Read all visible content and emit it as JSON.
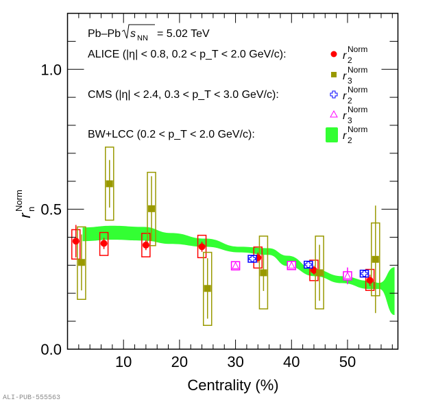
{
  "watermark": "ALI-PUB-555563",
  "chart_data": {
    "type": "scatter",
    "title": "",
    "xlabel": "Centrality (%)",
    "ylabel": "r_n^Norm",
    "ylabel_main": "r",
    "ylabel_sub": "n",
    "ylabel_sup": "Norm",
    "xlim": [
      0,
      59
    ],
    "ylim": [
      0,
      1.2
    ],
    "x_ticks": [
      10,
      20,
      30,
      40,
      50
    ],
    "x_tick_labels": [
      "10",
      "20",
      "30",
      "40",
      "50"
    ],
    "y_ticks": [
      0.0,
      0.5,
      1.0
    ],
    "y_tick_labels": [
      "0.0",
      "0.5",
      "1.0"
    ],
    "grid": false,
    "legend_position": "top",
    "annotations": {
      "system": "Pb–Pb",
      "energy_sym": "s",
      "energy_sub": "NN",
      "energy_value": "= 5.02 TeV",
      "alice_label": "ALICE (|η| < 0.8, 0.2 < p_T < 2.0 GeV/c):",
      "cms_label": "CMS (|η| < 2.4, 0.3 < p_T < 3.0 GeV/c):",
      "bw_label": "BW+LCC (0.2 < p_T < 2.0 GeV/c):"
    },
    "legend": [
      {
        "name": "ALICE r2 Norm",
        "main": "r",
        "sub": "2",
        "sup": "Norm",
        "marker": "circle",
        "color": "#ff0000"
      },
      {
        "name": "ALICE r3 Norm",
        "main": "r",
        "sub": "3",
        "sup": "Norm",
        "marker": "square",
        "color": "#999900"
      },
      {
        "name": "CMS r2 Norm",
        "main": "r",
        "sub": "2",
        "sup": "Norm",
        "marker": "open-cross",
        "color": "#0000ff"
      },
      {
        "name": "CMS r3 Norm",
        "main": "r",
        "sub": "3",
        "sup": "Norm",
        "marker": "open-triangle",
        "color": "#ff00ff"
      },
      {
        "name": "BW+LCC r2 Norm",
        "main": "r",
        "sub": "2",
        "sup": "Norm",
        "marker": "band",
        "color": "#33ff33"
      }
    ],
    "series": [
      {
        "name": "ALICE r2 Norm",
        "marker": "circle",
        "color": "#ff0000",
        "x": [
          1.5,
          6.5,
          14,
          24,
          34,
          44,
          54
        ],
        "y": [
          0.386,
          0.378,
          0.372,
          0.366,
          0.327,
          0.282,
          0.246
        ],
        "stat_err": [
          0.058,
          0.02,
          0.018,
          0.018,
          0.018,
          0.016,
          0.02
        ],
        "sys_lo": [
          0.322,
          0.335,
          0.33,
          0.327,
          0.29,
          0.245,
          0.21
        ],
        "sys_hi": [
          0.427,
          0.417,
          0.414,
          0.407,
          0.365,
          0.318,
          0.285
        ]
      },
      {
        "name": "ALICE r3 Norm",
        "marker": "square",
        "color": "#999900",
        "x": [
          2.5,
          7.5,
          15,
          25,
          35,
          45,
          55
        ],
        "y": [
          0.31,
          0.591,
          0.502,
          0.217,
          0.273,
          0.273,
          0.321
        ],
        "stat_err": [
          0.1,
          0.085,
          0.116,
          0.108,
          0.065,
          0.1,
          0.192
        ],
        "sys_lo": [
          0.178,
          0.461,
          0.37,
          0.085,
          0.144,
          0.144,
          0.191
        ],
        "sys_hi": [
          0.437,
          0.722,
          0.632,
          0.346,
          0.404,
          0.404,
          0.451
        ]
      },
      {
        "name": "CMS r2 Norm",
        "marker": "open-cross",
        "color": "#0000ff",
        "x": [
          33,
          43,
          53
        ],
        "y": [
          0.323,
          0.302,
          0.27
        ],
        "stat_err": [
          0.005,
          0.005,
          0.005
        ]
      },
      {
        "name": "CMS r3 Norm",
        "marker": "open-triangle",
        "color": "#ff00ff",
        "x": [
          30,
          40,
          50
        ],
        "y": [
          0.298,
          0.299,
          0.262
        ],
        "stat_err": [
          0.008,
          0.012,
          0.03
        ]
      }
    ],
    "band": {
      "name": "BW+LCC r2 Norm",
      "color": "#33ff33",
      "x": [
        2.7,
        8.0,
        13.5,
        18.5,
        24.6,
        30.7,
        35.9,
        39.3,
        44.1,
        49.0,
        53.9,
        55.7,
        58.4
      ],
      "lo": [
        0.386,
        0.391,
        0.388,
        0.376,
        0.366,
        0.346,
        0.337,
        0.297,
        0.261,
        0.236,
        0.215,
        0.215,
        0.122
      ],
      "hi": [
        0.435,
        0.441,
        0.437,
        0.415,
        0.395,
        0.366,
        0.361,
        0.334,
        0.285,
        0.261,
        0.244,
        0.237,
        0.293
      ]
    }
  }
}
